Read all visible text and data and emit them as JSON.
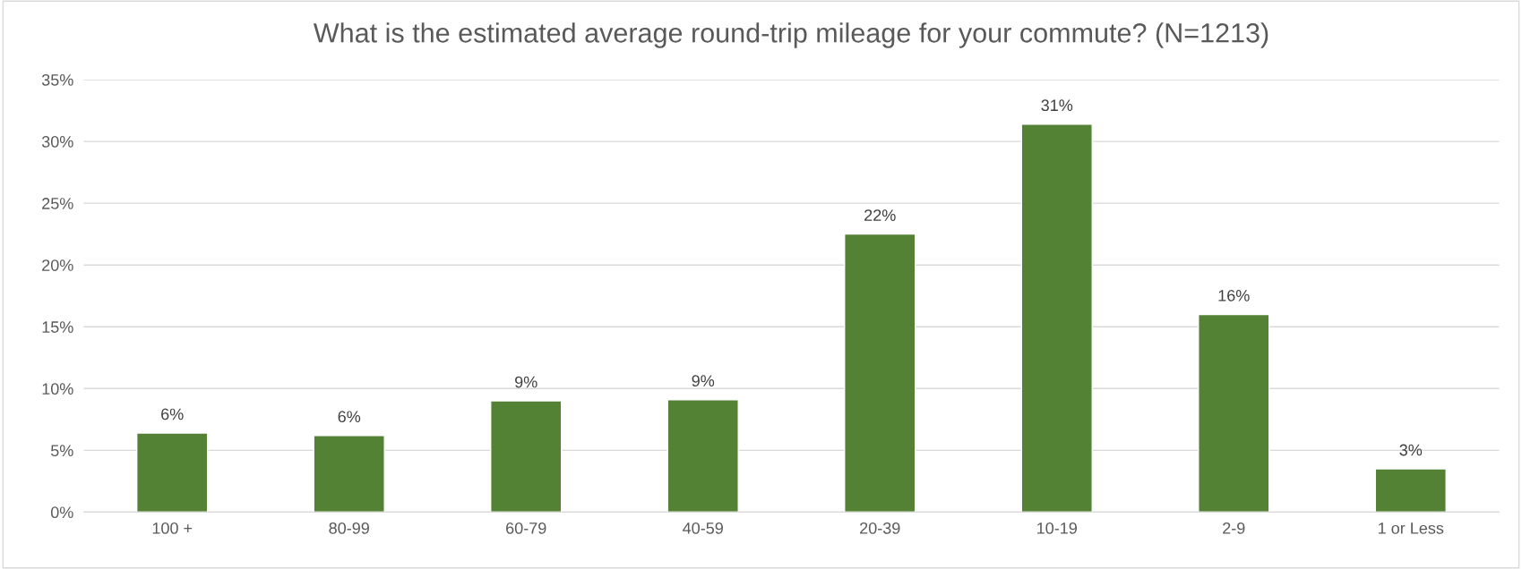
{
  "chart_data": {
    "type": "bar",
    "title": "What is the estimated average round-trip mileage for your commute? (N=1213)",
    "categories": [
      "100 +",
      "80-99",
      "60-79",
      "40-59",
      "20-39",
      "10-19",
      "2-9",
      "1 or Less"
    ],
    "values": [
      6.4,
      6.2,
      9.0,
      9.1,
      22.5,
      31.4,
      16.0,
      3.5
    ],
    "value_labels": [
      "6%",
      "6%",
      "9%",
      "9%",
      "22%",
      "31%",
      "16%",
      "3%"
    ],
    "color": "#548235",
    "ylim": [
      0,
      35
    ],
    "yticks": [
      {
        "value": 0,
        "label": "0%"
      },
      {
        "value": 5,
        "label": "5%"
      },
      {
        "value": 10,
        "label": "10%"
      },
      {
        "value": 15,
        "label": "15%"
      },
      {
        "value": 20,
        "label": "20%"
      },
      {
        "value": 25,
        "label": "25%"
      },
      {
        "value": 30,
        "label": "30%"
      },
      {
        "value": 35,
        "label": "35%"
      }
    ],
    "grid": "y"
  }
}
